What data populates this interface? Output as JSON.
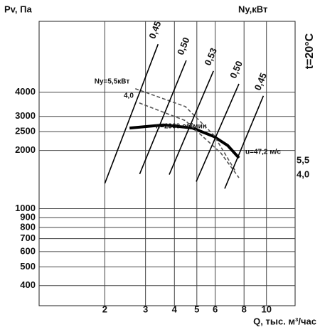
{
  "chart_data": {
    "type": "line",
    "y_label": "Pv, Па",
    "y2_label": "Ny,кВт",
    "side_label": "t=20°C",
    "x_label": "Q, тыс. м³/час",
    "log_x": true,
    "log_y": true,
    "grid": true,
    "xlim": [
      1.04,
      13.3
    ],
    "xticks": [
      2,
      3,
      4,
      5,
      6,
      8,
      10
    ],
    "ylim": [
      315,
      9300
    ],
    "yticks": [
      400,
      500,
      600,
      700,
      800,
      900,
      1000,
      2000,
      2500,
      3000,
      4000
    ],
    "series": [
      {
        "name": "n=2900 об/мин",
        "color": "#000000",
        "style": "solid-thick",
        "x": [
          2.56,
          3.59,
          4.79,
          5.92,
          6.8,
          7.6
        ],
        "values": [
          2610,
          2710,
          2610,
          2360,
          2120,
          1830
        ]
      },
      {
        "name": "Ny=5,5кВт",
        "color": "#555555",
        "style": "dashed",
        "x": [
          2.71,
          4.46,
          5.92,
          7.3
        ],
        "values": [
          4170,
          3370,
          2400,
          1580
        ]
      },
      {
        "name": "4,0",
        "color": "#555555",
        "style": "dashed",
        "x": [
          2.82,
          4.46,
          6.35,
          7.6
        ],
        "values": [
          3520,
          2850,
          1940,
          1445
        ]
      },
      {
        "name": "0,45",
        "color": "#000000",
        "style": "solid",
        "x": [
          2.0,
          3.4
        ],
        "values": [
          1350,
          7080
        ]
      },
      {
        "name": "0,50",
        "color": "#000000",
        "style": "solid",
        "x": [
          2.83,
          4.5
        ],
        "values": [
          1510,
          5840
        ]
      },
      {
        "name": "0,53",
        "color": "#000000",
        "style": "solid",
        "x": [
          3.8,
          5.9
        ],
        "values": [
          1500,
          5150
        ]
      },
      {
        "name": "0,50",
        "color": "#000000",
        "style": "solid",
        "x": [
          4.97,
          7.6
        ],
        "values": [
          1380,
          4420
        ]
      },
      {
        "name": "0,45",
        "color": "#000000",
        "style": "solid",
        "x": [
          6.6,
          9.7
        ],
        "values": [
          1270,
          3830
        ]
      }
    ],
    "annotations": [
      "u=47,2 м/с",
      "5,5",
      "4,0"
    ]
  }
}
